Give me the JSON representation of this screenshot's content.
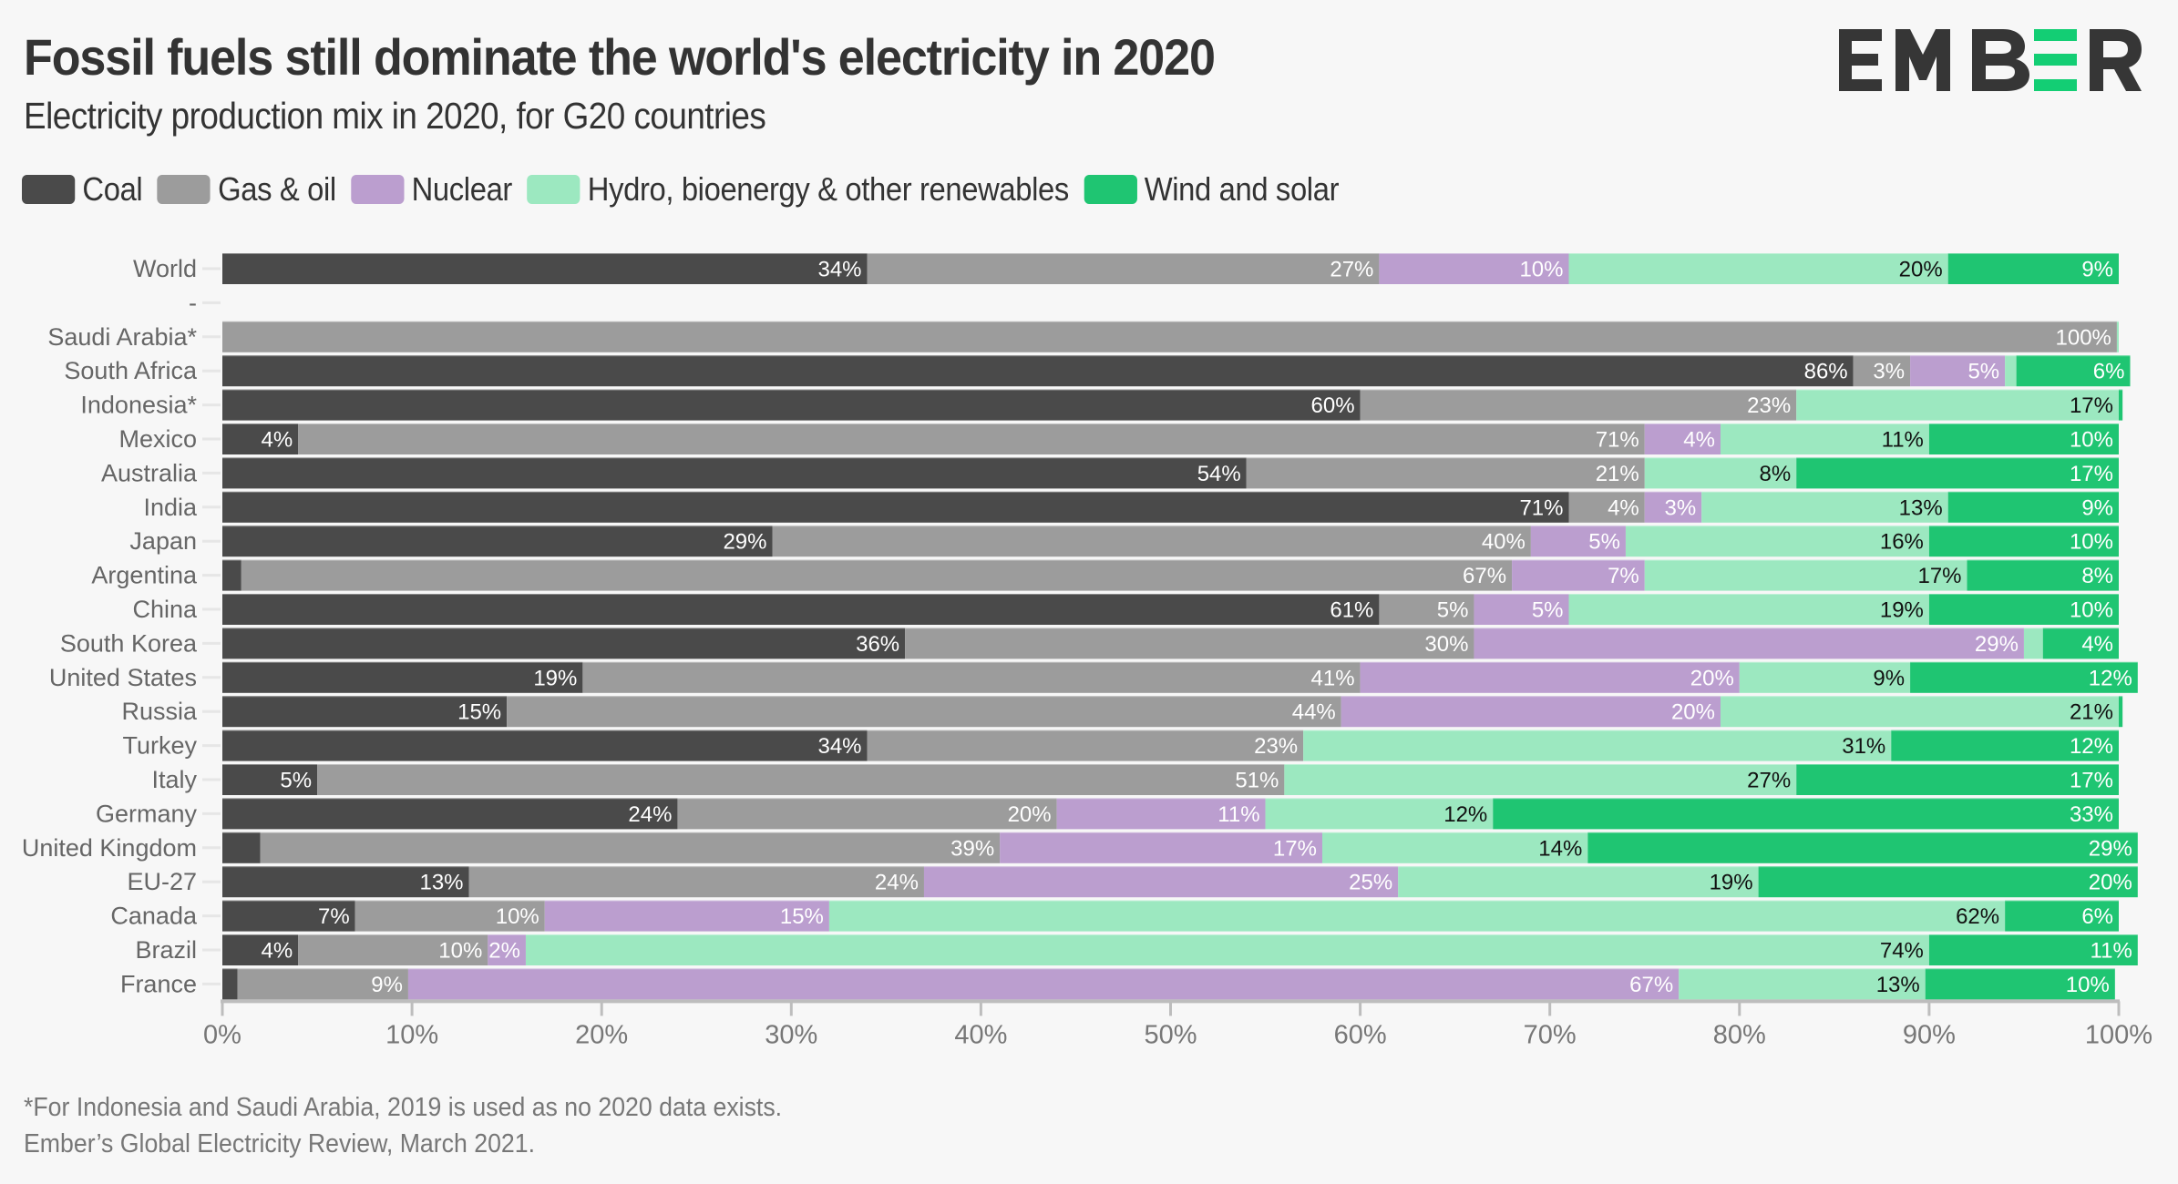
{
  "header": {
    "title": "Fossil fuels still dominate the world's electricity in 2020",
    "subtitle": "Electricity production mix in 2020, for G20 countries",
    "logo_text": "EMBER",
    "logo_colors": {
      "dark": "#363636",
      "accent": "#13ce74"
    }
  },
  "legend": [
    {
      "label": "Coal",
      "color": "#4a4a4a"
    },
    {
      "label": "Gas & oil",
      "color": "#9c9c9c"
    },
    {
      "label": "Nuclear",
      "color": "#bb9ecf"
    },
    {
      "label": "Hydro, bioenergy & other renewables",
      "color": "#9ce8c0"
    },
    {
      "label": "Wind and solar",
      "color": "#1fc572"
    }
  ],
  "footer": {
    "note": "*For Indonesia and Saudi Arabia, 2019 is used as no 2020 data exists.",
    "source": "Ember’s Global Electricity Review, March 2021."
  },
  "chart_data": {
    "type": "bar",
    "orientation": "horizontal",
    "stacked": true,
    "title": "Fossil fuels still dominate the world's electricity in 2020",
    "subtitle": "Electricity production mix in 2020, for G20 countries",
    "xlabel": "",
    "ylabel": "",
    "xlim": [
      0,
      100
    ],
    "x_ticks": [
      "0%",
      "10%",
      "20%",
      "30%",
      "40%",
      "50%",
      "60%",
      "70%",
      "80%",
      "90%",
      "100%"
    ],
    "legend_position": "top-left",
    "grid": false,
    "series_names": [
      "Coal",
      "Gas & oil",
      "Nuclear",
      "Hydro, bioenergy & other renewables",
      "Wind and solar"
    ],
    "series_colors": [
      "#4a4a4a",
      "#9c9c9c",
      "#bb9ecf",
      "#9ce8c0",
      "#1fc572"
    ],
    "label_colors": [
      "#ffffff",
      "#ffffff",
      "#ffffff",
      "#111111",
      "#ffffff"
    ],
    "categories": [
      "World",
      "-",
      "Saudi Arabia*",
      "South Africa",
      "Indonesia*",
      "Mexico",
      "Australia",
      "India",
      "Japan",
      "Argentina",
      "China",
      "South Korea",
      "United States",
      "Russia",
      "Turkey",
      "Italy",
      "Germany",
      "United Kingdom",
      "EU-27",
      "Canada",
      "Brazil",
      "France"
    ],
    "rows": [
      {
        "name": "World",
        "values": [
          34,
          27,
          10,
          20,
          9
        ]
      },
      {
        "name": "-",
        "values": null
      },
      {
        "name": "Saudi Arabia*",
        "values": [
          0,
          99.9,
          0,
          0.1,
          0
        ]
      },
      {
        "name": "South Africa",
        "values": [
          86,
          3,
          5,
          0.6,
          6
        ]
      },
      {
        "name": "Indonesia*",
        "values": [
          60,
          23,
          0,
          17,
          0.2
        ]
      },
      {
        "name": "Mexico",
        "values": [
          4,
          71,
          4,
          11,
          10
        ]
      },
      {
        "name": "Australia",
        "values": [
          54,
          21,
          0,
          8,
          17
        ]
      },
      {
        "name": "India",
        "values": [
          71,
          4,
          3,
          13,
          9
        ]
      },
      {
        "name": "Japan",
        "values": [
          29,
          40,
          5,
          16,
          10
        ]
      },
      {
        "name": "Argentina",
        "values": [
          1,
          67,
          7,
          17,
          8
        ]
      },
      {
        "name": "China",
        "values": [
          61,
          5,
          5,
          19,
          10
        ]
      },
      {
        "name": "South Korea",
        "values": [
          36,
          30,
          29,
          1,
          4
        ]
      },
      {
        "name": "United States",
        "values": [
          19,
          41,
          20,
          9,
          12
        ]
      },
      {
        "name": "Russia",
        "values": [
          15,
          44,
          20,
          21,
          0.2
        ]
      },
      {
        "name": "Turkey",
        "values": [
          34,
          23,
          0,
          31,
          12
        ]
      },
      {
        "name": "Italy",
        "values": [
          5,
          51,
          0,
          27,
          17
        ]
      },
      {
        "name": "Germany",
        "values": [
          24,
          20,
          11,
          12,
          33
        ]
      },
      {
        "name": "United Kingdom",
        "values": [
          2,
          39,
          17,
          14,
          29
        ]
      },
      {
        "name": "EU-27",
        "values": [
          13,
          24,
          25,
          19,
          20
        ]
      },
      {
        "name": "Canada",
        "values": [
          7,
          10,
          15,
          62,
          6
        ]
      },
      {
        "name": "Brazil",
        "values": [
          4,
          10,
          2,
          74,
          11
        ]
      },
      {
        "name": "France",
        "values": [
          0.8,
          9,
          67,
          13,
          10
        ]
      }
    ],
    "labels": [
      [
        "34%",
        "27%",
        "10%",
        "20%",
        "9%"
      ],
      null,
      [
        "",
        "100%",
        "",
        "",
        ""
      ],
      [
        "86%",
        "3%",
        "5%",
        "",
        "6%"
      ],
      [
        "60%",
        "23%",
        "",
        "17%",
        ""
      ],
      [
        "4%",
        "71%",
        "4%",
        "11%",
        "10%"
      ],
      [
        "54%",
        "21%",
        "",
        "8%",
        "17%"
      ],
      [
        "71%",
        "4%",
        "3%",
        "13%",
        "9%"
      ],
      [
        "29%",
        "40%",
        "5%",
        "16%",
        "10%"
      ],
      [
        "",
        "67%",
        "7%",
        "17%",
        "8%"
      ],
      [
        "61%",
        "5%",
        "5%",
        "19%",
        "10%"
      ],
      [
        "36%",
        "30%",
        "29%",
        "",
        "4%"
      ],
      [
        "19%",
        "41%",
        "20%",
        "9%",
        "12%"
      ],
      [
        "15%",
        "44%",
        "20%",
        "21%",
        ""
      ],
      [
        "34%",
        "23%",
        "",
        "31%",
        "12%"
      ],
      [
        "5%",
        "51%",
        "",
        "27%",
        "17%"
      ],
      [
        "24%",
        "20%",
        "11%",
        "12%",
        "33%"
      ],
      [
        "",
        "39%",
        "17%",
        "14%",
        "29%"
      ],
      [
        "13%",
        "24%",
        "25%",
        "19%",
        "20%"
      ],
      [
        "7%",
        "10%",
        "15%",
        "62%",
        "6%"
      ],
      [
        "4%",
        "10%",
        "2%",
        "74%",
        "11%"
      ],
      [
        "",
        "9%",
        "67%",
        "13%",
        "10%"
      ]
    ]
  }
}
